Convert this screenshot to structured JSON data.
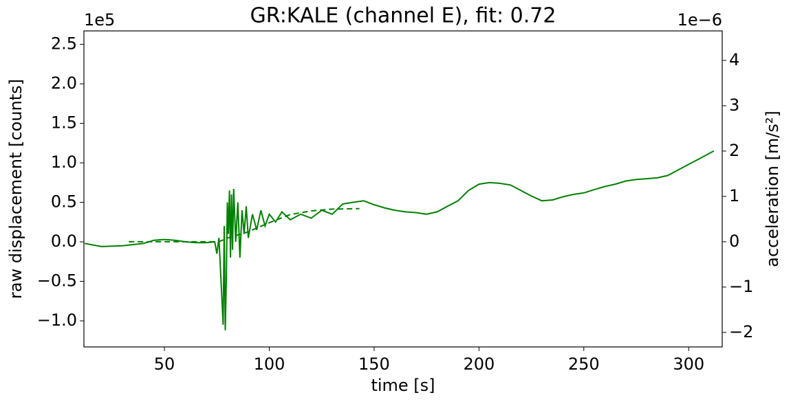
{
  "chart_data": {
    "type": "line",
    "title": "GR:KALE  (channel E), fit: 0.72",
    "x_label": "time [s]",
    "y_label": "raw displacement [counts]",
    "y2_label": "acceleration [m/s²]",
    "y_offset_label": "1e5",
    "y2_offset_label": "1e−6",
    "xlim": [
      11.6,
      316
    ],
    "xticks": [
      50,
      100,
      150,
      200,
      250,
      300
    ],
    "ylim": [
      -1.33,
      2.67
    ],
    "yticks": [
      {
        "value": -1.0,
        "label": "−1.0"
      },
      {
        "value": -0.5,
        "label": "−0.5"
      },
      {
        "value": 0.0,
        "label": "0.0"
      },
      {
        "value": 0.5,
        "label": "0.5"
      },
      {
        "value": 1.0,
        "label": "1.0"
      },
      {
        "value": 1.5,
        "label": "1.5"
      },
      {
        "value": 2.0,
        "label": "2.0"
      },
      {
        "value": 2.5,
        "label": "2.5"
      }
    ],
    "y2lim": [
      -2.32,
      4.65
    ],
    "y2ticks": [
      {
        "value": -2,
        "label": "−2"
      },
      {
        "value": -1,
        "label": "−1"
      },
      0,
      1,
      2,
      3,
      4
    ],
    "grid": false,
    "series": [
      {
        "color": "#008000",
        "dash": false,
        "axis": "y",
        "x": [
          12,
          20,
          30,
          40,
          45,
          50,
          55,
          60,
          65,
          70,
          74,
          75,
          76,
          77,
          78,
          78.5,
          79,
          79.5,
          80,
          80.5,
          81,
          81.5,
          82,
          82.5,
          83,
          84,
          85,
          86,
          87,
          88,
          89,
          90,
          92,
          94,
          96,
          98,
          100,
          103,
          106,
          110,
          115,
          120,
          125,
          130,
          135,
          140,
          145,
          150,
          155,
          160,
          165,
          170,
          175,
          180,
          185,
          190,
          195,
          200,
          205,
          210,
          215,
          220,
          225,
          230,
          235,
          240,
          245,
          250,
          255,
          260,
          265,
          270,
          275,
          280,
          285,
          290,
          295,
          300,
          305,
          312
        ],
        "values": [
          -0.02,
          -0.06,
          -0.05,
          -0.02,
          0.02,
          0.03,
          0.02,
          0.0,
          -0.01,
          -0.01,
          0.0,
          -0.15,
          0.05,
          -0.5,
          -1.05,
          0.2,
          -1.12,
          -0.5,
          0.5,
          0.1,
          0.65,
          -0.2,
          0.6,
          -0.1,
          0.67,
          0.0,
          0.5,
          -0.2,
          0.4,
          0.1,
          0.45,
          0.05,
          0.35,
          0.15,
          0.4,
          0.2,
          0.35,
          0.25,
          0.38,
          0.28,
          0.35,
          0.3,
          0.4,
          0.35,
          0.48,
          0.5,
          0.52,
          0.47,
          0.43,
          0.4,
          0.38,
          0.37,
          0.35,
          0.38,
          0.45,
          0.52,
          0.65,
          0.73,
          0.75,
          0.74,
          0.72,
          0.65,
          0.58,
          0.52,
          0.53,
          0.57,
          0.6,
          0.62,
          0.66,
          0.7,
          0.73,
          0.77,
          0.79,
          0.8,
          0.81,
          0.84,
          0.91,
          0.98,
          1.05,
          1.15
        ]
      },
      {
        "color": "#008000",
        "dash": true,
        "axis": "y2",
        "x": [
          33,
          50,
          70,
          76,
          80,
          90,
          100,
          110,
          120,
          130,
          143
        ],
        "values": [
          0,
          0,
          0,
          0.0,
          0.08,
          0.22,
          0.42,
          0.6,
          0.68,
          0.72,
          0.73
        ]
      }
    ]
  }
}
